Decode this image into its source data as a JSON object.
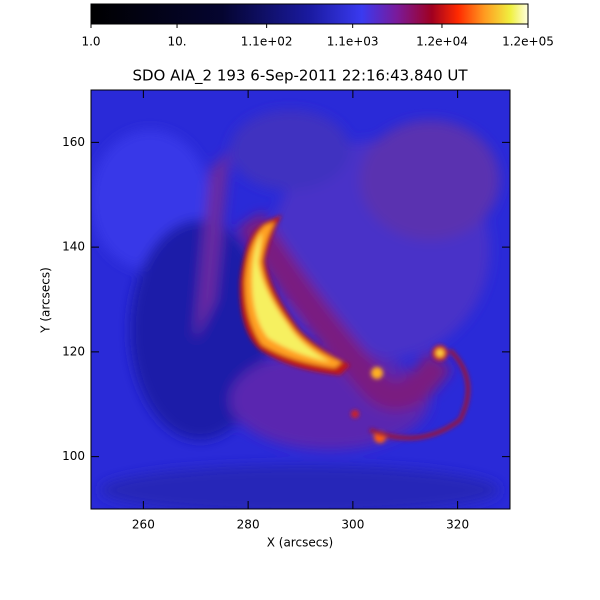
{
  "chart_data": {
    "type": "image",
    "title": "SDO AIA_2 193  6-Sep-2011 22:16:43.840 UT",
    "x_label": "X (arcsecs)",
    "y_label": "Y (arcsecs)",
    "xlim": [
      250,
      330
    ],
    "ylim": [
      90,
      170
    ],
    "xticks": [
      260,
      280,
      300,
      320
    ],
    "yticks": [
      100,
      120,
      140,
      160
    ],
    "colorbar": {
      "scale": "log",
      "lim": [
        1,
        120000
      ],
      "ticks": [
        {
          "value": 1,
          "label": "1.0"
        },
        {
          "value": 10,
          "label": "10."
        },
        {
          "value": 110,
          "label": "1.1e+02"
        },
        {
          "value": 1100,
          "label": "1.1e+03"
        },
        {
          "value": 12000,
          "label": "1.2e+04"
        },
        {
          "value": 120000,
          "label": "1.2e+05"
        }
      ]
    }
  }
}
